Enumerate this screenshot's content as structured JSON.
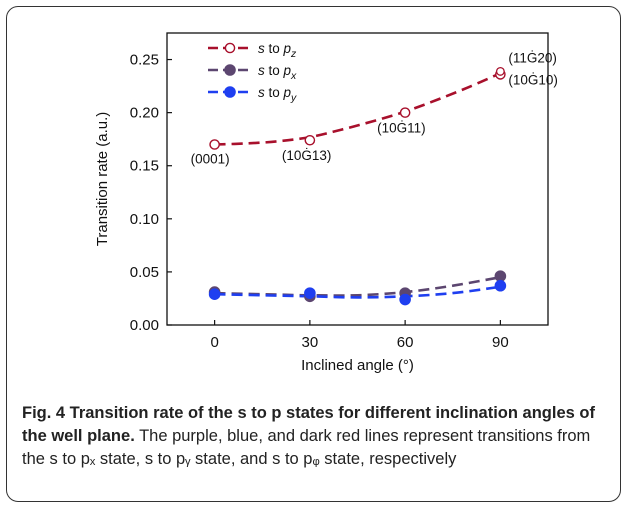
{
  "chart_data": {
    "type": "line",
    "xlabel": "Inclined angle (°)",
    "ylabel": "Transition rate (a.u.)",
    "xlim": [
      -15,
      105
    ],
    "ylim": [
      0,
      0.275
    ],
    "xticks": [
      0,
      30,
      60,
      90
    ],
    "yticks": [
      0.0,
      0.05,
      0.1,
      0.15,
      0.2,
      0.25
    ],
    "ytick_labels": [
      "0.00",
      "0.05",
      "0.10",
      "0.15",
      "0.20",
      "0.25"
    ],
    "legend_position": "top-left",
    "series": [
      {
        "name_prefix": "s",
        "name_mid": " to ",
        "name_base": "p",
        "name_sub": "z",
        "marker": "open-circle",
        "color": "#a8102c",
        "x": [
          0,
          30,
          60,
          90
        ],
        "values": [
          0.17,
          0.174,
          0.2,
          0.236
        ],
        "curve_x": [
          0,
          10,
          20,
          30,
          40,
          50,
          60,
          70,
          80,
          90
        ],
        "curve_y": [
          0.17,
          0.171,
          0.173,
          0.177,
          0.184,
          0.192,
          0.201,
          0.212,
          0.224,
          0.237
        ]
      },
      {
        "name_prefix": "s",
        "name_mid": " to ",
        "name_base": "p",
        "name_sub": "x",
        "marker": "filled-circle",
        "color": "#5c4670",
        "x": [
          0,
          30,
          60,
          90
        ],
        "values": [
          0.031,
          0.027,
          0.03,
          0.046
        ],
        "curve_x": [
          0,
          15,
          30,
          45,
          60,
          75,
          90
        ],
        "curve_y": [
          0.03,
          0.029,
          0.028,
          0.028,
          0.031,
          0.037,
          0.045
        ]
      },
      {
        "name_prefix": "s",
        "name_mid": " to ",
        "name_base": "p",
        "name_sub": "y",
        "marker": "filled-circle",
        "color": "#1f3ff0",
        "x": [
          0,
          30,
          60,
          90
        ],
        "values": [
          0.029,
          0.03,
          0.024,
          0.037
        ],
        "curve_x": [
          0,
          15,
          30,
          45,
          60,
          75,
          90
        ],
        "curve_y": [
          0.029,
          0.028,
          0.027,
          0.026,
          0.027,
          0.03,
          0.036
        ]
      }
    ],
    "annotations": [
      {
        "text": "(0001)",
        "x": 0,
        "y": 0.17
      },
      {
        "text": "(10Ġ13)",
        "x": 30,
        "y": 0.174
      },
      {
        "text": "(10Ġ11)",
        "x": 60,
        "y": 0.2
      },
      {
        "text": "(11Ġ20)",
        "x": 90,
        "y": 0.236
      },
      {
        "text": "(10Ġ10)",
        "x": 90,
        "y": 0.236
      }
    ]
  },
  "caption": {
    "bold": "Fig. 4 Transition rate of the s to p states for different inclination angles of the well plane.",
    "text": " The purple, blue, and dark red lines represent transitions from the s to pₓ state, s to pᵧ state, and s to pᵩ state, respectively"
  }
}
